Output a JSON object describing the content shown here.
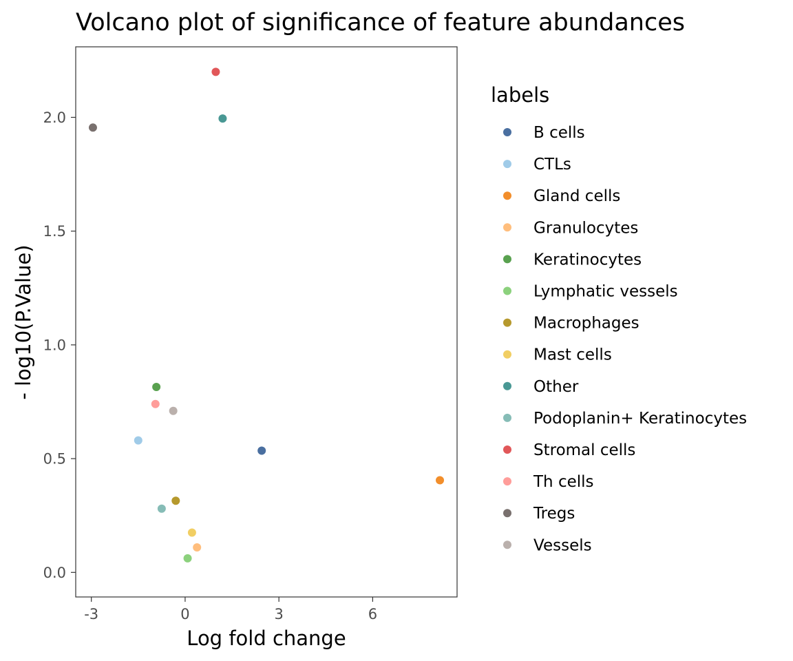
{
  "chart_data": {
    "type": "scatter",
    "title": "Volcano plot of significance of feature abundances",
    "xlabel": "Log fold change",
    "ylabel": "- log10(P.Value)",
    "xlim": [
      -3.5,
      8.7
    ],
    "ylim": [
      -0.108,
      2.31
    ],
    "xticks": [
      -3,
      0,
      3,
      6
    ],
    "xtick_labels": [
      "-3",
      "0",
      "3",
      "6"
    ],
    "yticks": [
      0.0,
      0.5,
      1.0,
      1.5,
      2.0
    ],
    "ytick_labels": [
      "0.0",
      "0.5",
      "1.0",
      "1.5",
      "2.0"
    ],
    "grid": false,
    "legend": {
      "title": "labels",
      "placement": "right"
    },
    "series": [
      {
        "name": "B cells",
        "color": "#4a6fa0",
        "x": 2.45,
        "y": 0.535
      },
      {
        "name": "CTLs",
        "color": "#a0cbe8",
        "x": -1.5,
        "y": 0.58
      },
      {
        "name": "Gland cells",
        "color": "#f28e2b",
        "x": 8.15,
        "y": 0.405
      },
      {
        "name": "Granulocytes",
        "color": "#ffbe7d",
        "x": 0.38,
        "y": 0.11
      },
      {
        "name": "Keratinocytes",
        "color": "#59a14f",
        "x": -0.92,
        "y": 0.815
      },
      {
        "name": "Lymphatic vessels",
        "color": "#8cd17d",
        "x": 0.08,
        "y": 0.062
      },
      {
        "name": "Macrophages",
        "color": "#b6992d",
        "x": -0.3,
        "y": 0.315
      },
      {
        "name": "Mast cells",
        "color": "#f1ce63",
        "x": 0.22,
        "y": 0.175
      },
      {
        "name": "Other",
        "color": "#499894",
        "x": 1.2,
        "y": 1.995
      },
      {
        "name": "Podoplanin+ Keratinocytes",
        "color": "#86bcb6",
        "x": -0.75,
        "y": 0.28
      },
      {
        "name": "Stromal cells",
        "color": "#e15759",
        "x": 0.98,
        "y": 2.2
      },
      {
        "name": "Th cells",
        "color": "#ff9d9a",
        "x": -0.95,
        "y": 0.74
      },
      {
        "name": "Tregs",
        "color": "#79706e",
        "x": -2.95,
        "y": 1.955
      },
      {
        "name": "Vessels",
        "color": "#bab0ac",
        "x": -0.38,
        "y": 0.71
      }
    ]
  }
}
